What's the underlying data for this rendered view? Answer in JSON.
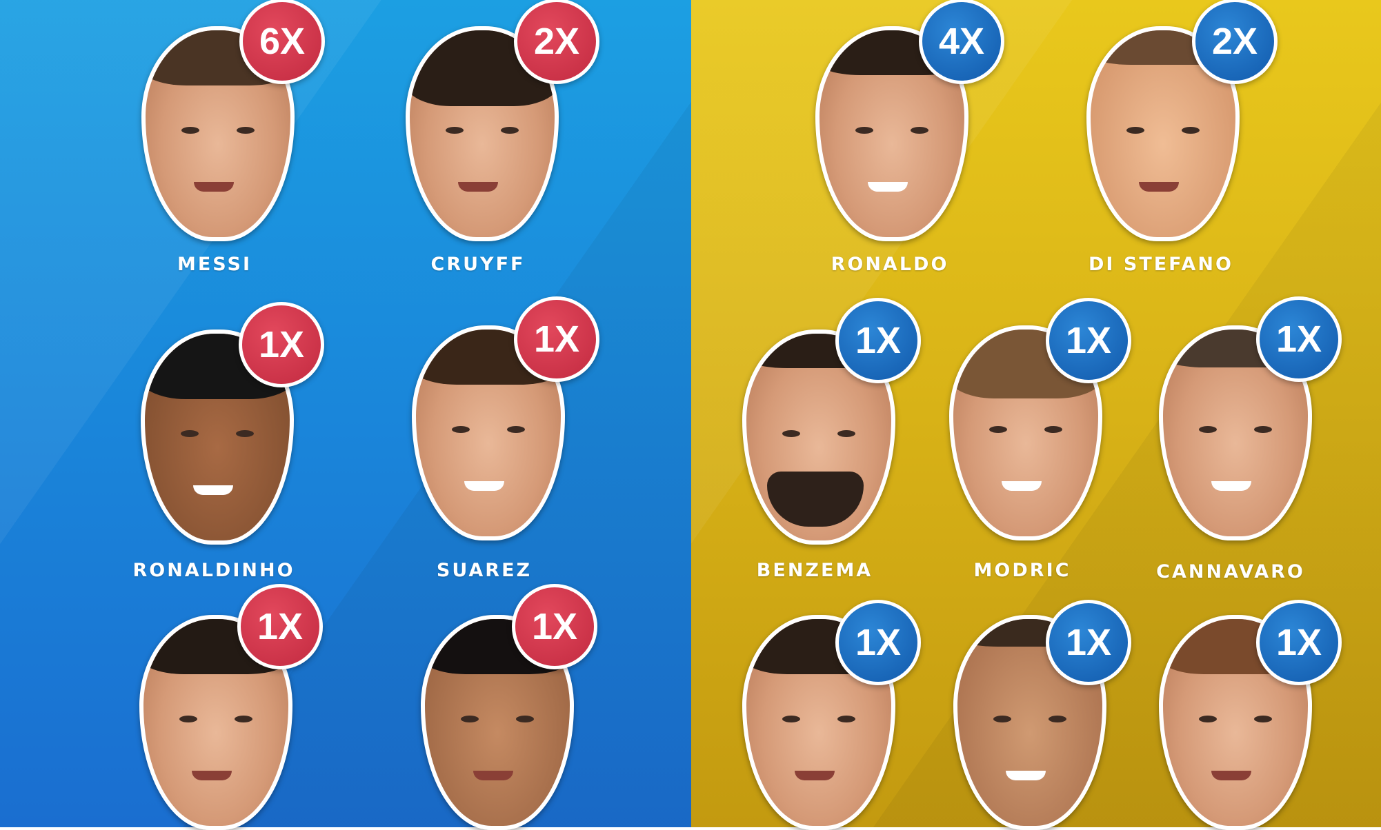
{
  "colors": {
    "left_bg": "#1a86da",
    "right_bg": "#d8b217",
    "left_badge": "#c22a40",
    "right_badge": "#1159ab"
  },
  "left": {
    "players": [
      {
        "name": "MESSI",
        "count": "6X"
      },
      {
        "name": "CRUYFF",
        "count": "2X"
      },
      {
        "name": "RONALDINHO",
        "count": "1X"
      },
      {
        "name": "SUAREZ",
        "count": "1X"
      },
      {
        "count": "1X"
      },
      {
        "count": "1X"
      }
    ]
  },
  "right": {
    "players": [
      {
        "name": "RONALDO",
        "count": "4X"
      },
      {
        "name": "DI STEFANO",
        "count": "2X"
      },
      {
        "name": "BENZEMA",
        "count": "1X"
      },
      {
        "name": "MODRIC",
        "count": "1X"
      },
      {
        "name": "CANNAVARO",
        "count": "1X"
      },
      {
        "count": "1X"
      },
      {
        "count": "1X"
      },
      {
        "count": "1X"
      }
    ]
  }
}
